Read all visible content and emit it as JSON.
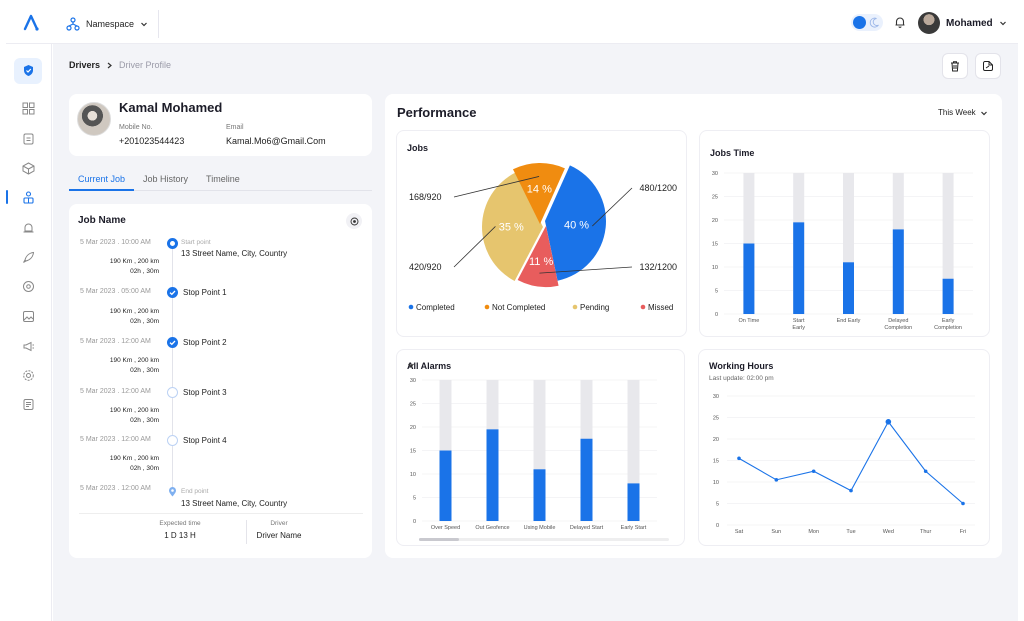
{
  "topbar": {
    "namespace_label": "Namespace",
    "user_name": "Mohamed"
  },
  "breadcrumb": {
    "parent": "Drivers",
    "current": "Driver Profile"
  },
  "profile": {
    "name": "Kamal Mohamed",
    "mobile_label": "Mobile No.",
    "mobile_value": "+201023544423",
    "email_label": "Email",
    "email_value": "Kamal.Mo6@Gmail.Com"
  },
  "tabs": [
    "Current Job",
    "Job History",
    "Timeline"
  ],
  "job": {
    "title": "Job Name",
    "points": [
      {
        "time": "5 Mar 2023 . 10:00 AM",
        "dist": "190 Km , 200 km",
        "dur": "02h , 30m",
        "sub": "Start point",
        "name": "13 Street Name, City, Country",
        "status": "start"
      },
      {
        "time": "5 Mar 2023 . 05:00 AM",
        "dist": "190 Km , 200 km",
        "dur": "02h , 30m",
        "sub": "",
        "name": "Stop Point 1",
        "status": "done"
      },
      {
        "time": "5 Mar 2023 . 12:00 AM",
        "dist": "190 Km , 200 km",
        "dur": "02h , 30m",
        "sub": "",
        "name": "Stop Point 2",
        "status": "done"
      },
      {
        "time": "5 Mar 2023 . 12:00 AM",
        "dist": "190 Km , 200 km",
        "dur": "02h , 30m",
        "sub": "",
        "name": "Stop Point 3",
        "status": "pending"
      },
      {
        "time": "5 Mar 2023 . 12:00 AM",
        "dist": "190 Km , 200 km",
        "dur": "02h , 30m",
        "sub": "",
        "name": "Stop Point 4",
        "status": "pending"
      },
      {
        "time": "5 Mar 2023 . 12:00 AM",
        "dist": "",
        "dur": "",
        "sub": "End point",
        "name": "13 Street Name, City, Country",
        "status": "end"
      }
    ],
    "expected_label": "Expected time",
    "expected_value": "1 D 13 H",
    "driver_label": "Driver",
    "driver_value": "Driver Name"
  },
  "performance": {
    "title": "Performance",
    "range": "This Week"
  },
  "colors": {
    "primary": "#1a73e8",
    "bar_bg": "#e8e8ec",
    "completed": "#1a73e8",
    "not_completed": "#f08c10",
    "pending": "#e6c56e",
    "missed": "#e85d5d"
  },
  "chart_data": [
    {
      "id": "jobs",
      "type": "pie",
      "title": "Jobs",
      "slices": [
        {
          "name": "Completed",
          "percent": 40,
          "label": "40 %",
          "callout": "480/1200"
        },
        {
          "name": "Missed",
          "percent": 11,
          "label": "11 %",
          "callout": "132/1200"
        },
        {
          "name": "Pending",
          "percent": 35,
          "label": "35 %",
          "callout": "420/920"
        },
        {
          "name": "Not Completed",
          "percent": 14,
          "label": "14 %",
          "callout": "168/920"
        }
      ],
      "legend": [
        "Completed",
        "Not Completed",
        "Pending",
        "Missed"
      ],
      "legend_position": "bottom"
    },
    {
      "id": "jobs_time",
      "type": "bar",
      "title": "Jobs Time",
      "categories": [
        "On Time",
        "Start Early",
        "End Early",
        "Delayed Completion",
        "Early Completion"
      ],
      "values": [
        15,
        19.5,
        11,
        18,
        7.5
      ],
      "max": 30,
      "yticks": [
        0,
        5,
        10,
        15,
        20,
        25,
        30
      ]
    },
    {
      "id": "alarms",
      "type": "bar",
      "title": "All Alarms",
      "categories": [
        "Over Speed",
        "Out Geofence",
        "Using Mobile",
        "Delayed Start",
        "Early Start"
      ],
      "values": [
        15,
        19.5,
        11,
        17.5,
        8
      ],
      "max": 30,
      "yticks": [
        0,
        5,
        10,
        15,
        20,
        25,
        30
      ]
    },
    {
      "id": "working_hours",
      "type": "line",
      "title": "Working Hours",
      "subtitle": "Last update: 02:00 pm",
      "categories": [
        "Sat",
        "Sun",
        "Mon",
        "Tue",
        "Wed",
        "Thur",
        "Fri"
      ],
      "values": [
        15.5,
        10.5,
        12.5,
        8,
        24,
        12.5,
        5
      ],
      "ylim": [
        0,
        30
      ],
      "yticks": [
        0,
        5,
        10,
        15,
        20,
        25,
        30
      ]
    }
  ]
}
